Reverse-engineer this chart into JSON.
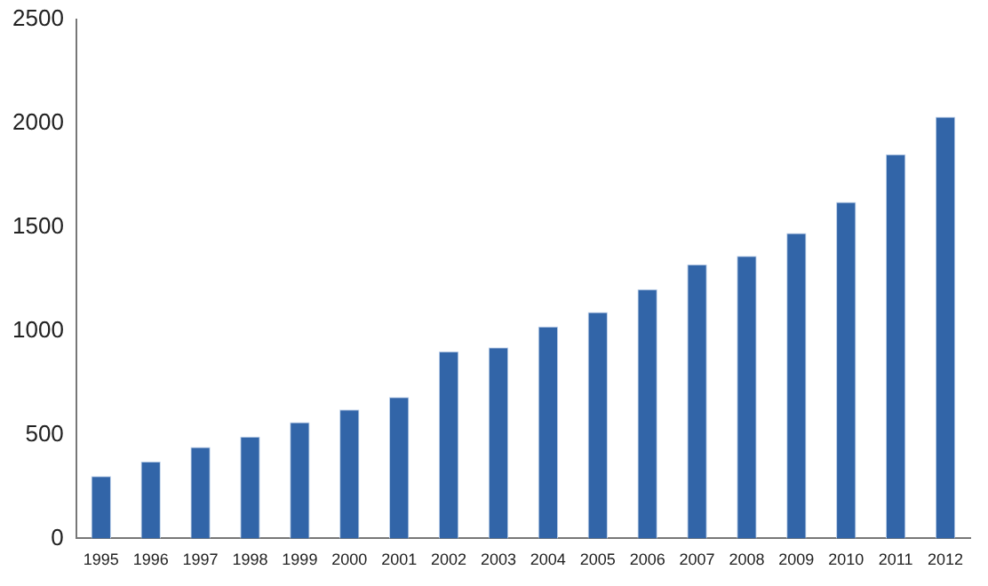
{
  "chart_data": {
    "type": "bar",
    "categories": [
      "1995",
      "1996",
      "1997",
      "1998",
      "1999",
      "2000",
      "2001",
      "2002",
      "2003",
      "2004",
      "2005",
      "2006",
      "2007",
      "2008",
      "2009",
      "2010",
      "2011",
      "2012"
    ],
    "values": [
      300,
      370,
      440,
      490,
      560,
      620,
      680,
      900,
      920,
      1020,
      1090,
      1200,
      1320,
      1360,
      1470,
      1620,
      1850,
      2030
    ],
    "color": "#3265a8",
    "ylim": [
      0,
      2500
    ],
    "yticks": [
      0,
      500,
      1000,
      1500,
      2000,
      2500
    ],
    "grid": false,
    "legend": false
  }
}
